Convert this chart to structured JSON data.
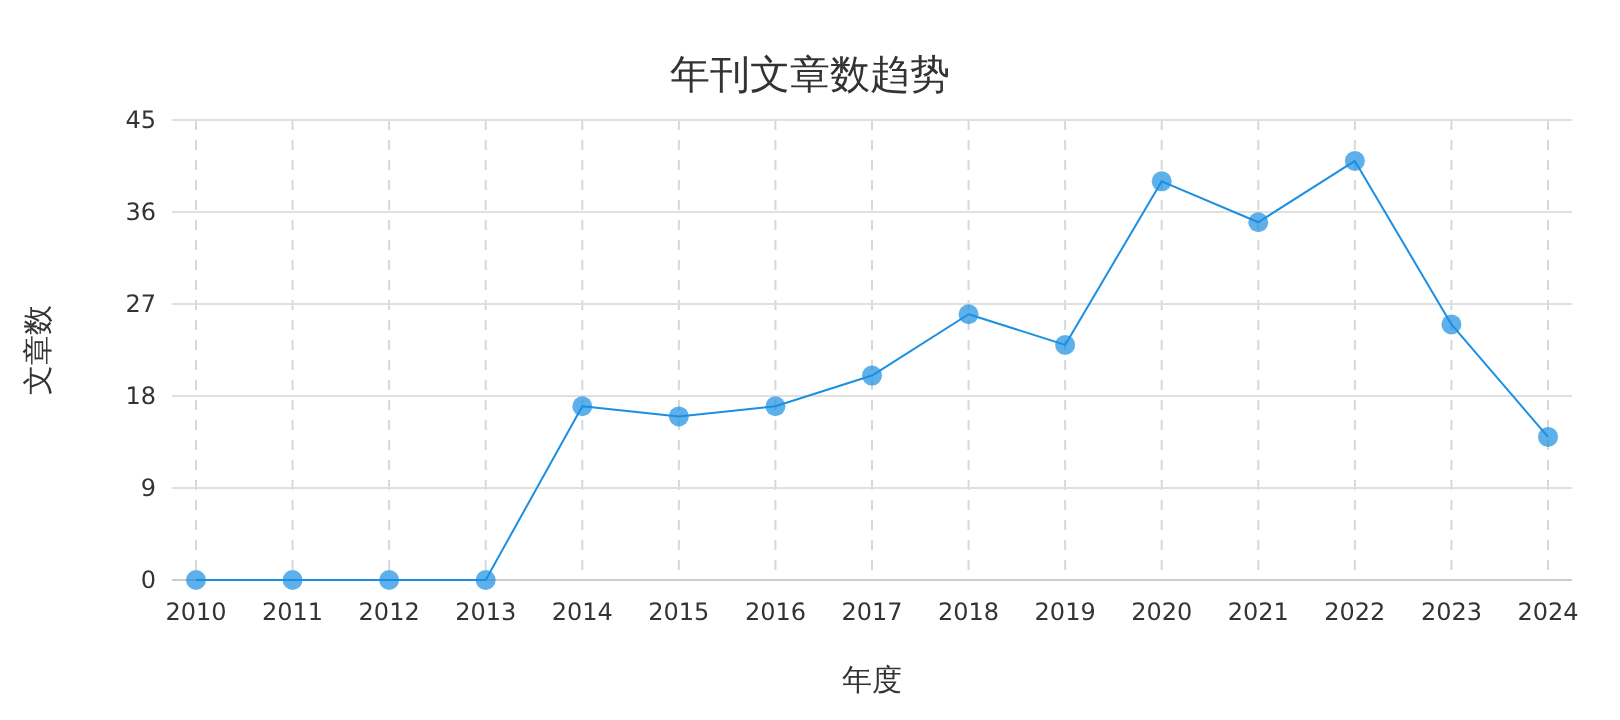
{
  "chart_data": {
    "type": "line",
    "title": "年刊文章数趋势",
    "xlabel": "年度",
    "ylabel": "文章数",
    "categories": [
      "2010",
      "2011",
      "2012",
      "2013",
      "2014",
      "2015",
      "2016",
      "2017",
      "2018",
      "2019",
      "2020",
      "2021",
      "2022",
      "2023",
      "2024"
    ],
    "series": [
      {
        "color": "#1a8fe3",
        "values": [
          0,
          0,
          0,
          0,
          17,
          16,
          17,
          20,
          26,
          23,
          39,
          35,
          41,
          25,
          14
        ]
      }
    ],
    "ylim": [
      0,
      45
    ],
    "yticks": [
      0,
      9,
      18,
      27,
      36,
      45
    ],
    "grid": true,
    "marker": "circle",
    "line_style": "solid"
  }
}
